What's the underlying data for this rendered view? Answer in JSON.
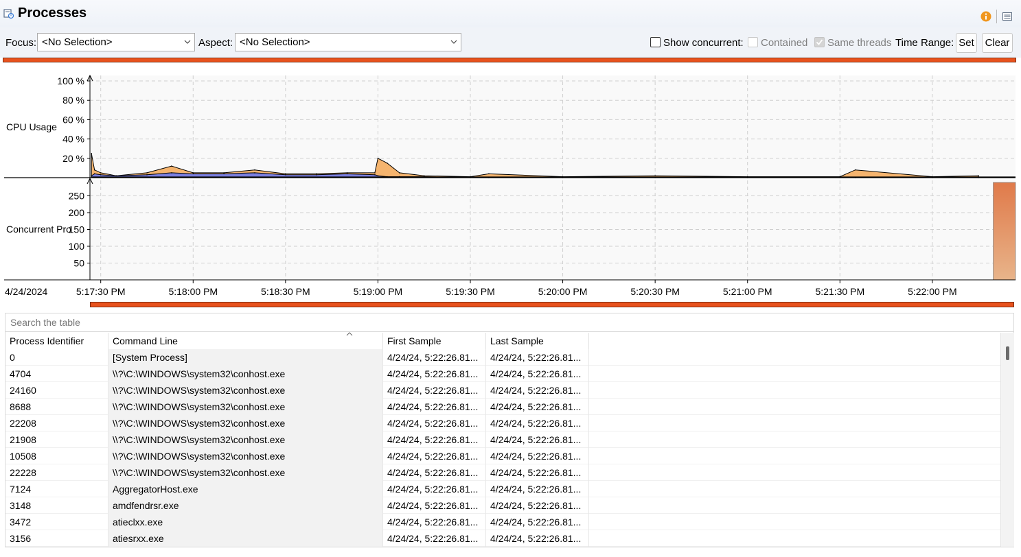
{
  "header": {
    "title": "Processes"
  },
  "toolbar": {
    "focus_label": "Focus:",
    "focus_value": "<No Selection>",
    "aspect_label": "Aspect:",
    "aspect_value": "<No Selection>",
    "show_concurrent_label": "Show concurrent:",
    "show_concurrent_checked": false,
    "contained_label": "Contained",
    "contained_checked": false,
    "same_threads_label": "Same threads",
    "same_threads_checked": true,
    "time_range_label": "Time Range:",
    "set_label": "Set",
    "clear_label": "Clear"
  },
  "chart": {
    "date_label": "4/24/2024",
    "cpu_axis_label": "CPU Usage",
    "concurrent_axis_label": "Concurrent Pro",
    "cpu_ticks": [
      "100 %",
      "80 %",
      "60 %",
      "40 %",
      "20 %"
    ],
    "concurrent_ticks": [
      "250",
      "200",
      "150",
      "100",
      "50"
    ],
    "time_ticks": [
      "5:17:30 PM",
      "5:18:00 PM",
      "5:18:30 PM",
      "5:19:00 PM",
      "5:19:30 PM",
      "5:20:00 PM",
      "5:20:30 PM",
      "5:21:00 PM",
      "5:21:30 PM",
      "5:22:00 PM"
    ]
  },
  "chart_data": [
    {
      "type": "area",
      "ylabel": "CPU Usage",
      "ylim": [
        0,
        100
      ],
      "grid": true,
      "x": [
        "5:17:27 PM",
        "5:17:28 PM",
        "5:17:30 PM",
        "5:17:35 PM",
        "5:17:45 PM",
        "5:17:53 PM",
        "5:18:00 PM",
        "5:18:10 PM",
        "5:18:20 PM",
        "5:18:30 PM",
        "5:18:40 PM",
        "5:18:50 PM",
        "5:18:59 PM",
        "5:19:00 PM",
        "5:19:03 PM",
        "5:19:07 PM",
        "5:19:15 PM",
        "5:19:30 PM",
        "5:19:36 PM",
        "5:20:00 PM",
        "5:20:30 PM",
        "5:21:00 PM",
        "5:21:30 PM",
        "5:21:35 PM",
        "5:22:00 PM",
        "5:22:15 PM"
      ],
      "series": [
        {
          "values": [
            25,
            8,
            5,
            2,
            5,
            12,
            5,
            5,
            8,
            4,
            4,
            5,
            5,
            20,
            15,
            5,
            2,
            1,
            4,
            1,
            2,
            1,
            1,
            8,
            1,
            2
          ]
        },
        {
          "values": [
            2,
            4,
            3,
            2,
            3,
            5,
            4,
            4,
            5,
            3,
            3,
            4,
            3,
            2,
            1,
            1,
            1,
            0,
            0,
            0,
            0,
            0,
            0,
            0,
            0,
            0
          ]
        }
      ]
    },
    {
      "type": "bar",
      "ylabel": "Concurrent Pro",
      "ylim": [
        0,
        300
      ],
      "categories": [
        "5:22:26 PM"
      ],
      "values": [
        290
      ]
    }
  ],
  "table": {
    "search_placeholder": "Search the table",
    "columns": [
      "Process Identifier",
      "Command Line",
      "First Sample",
      "Last Sample"
    ],
    "rows": [
      [
        "0",
        "[System Process]",
        "4/24/24, 5:22:26.81...",
        "4/24/24, 5:22:26.81..."
      ],
      [
        "4704",
        "\\\\?\\C:\\WINDOWS\\system32\\conhost.exe",
        "4/24/24, 5:22:26.81...",
        "4/24/24, 5:22:26.81..."
      ],
      [
        "24160",
        "\\\\?\\C:\\WINDOWS\\system32\\conhost.exe",
        "4/24/24, 5:22:26.81...",
        "4/24/24, 5:22:26.81..."
      ],
      [
        "8688",
        "\\\\?\\C:\\WINDOWS\\system32\\conhost.exe",
        "4/24/24, 5:22:26.81...",
        "4/24/24, 5:22:26.81..."
      ],
      [
        "22208",
        "\\\\?\\C:\\WINDOWS\\system32\\conhost.exe",
        "4/24/24, 5:22:26.81...",
        "4/24/24, 5:22:26.81..."
      ],
      [
        "21908",
        "\\\\?\\C:\\WINDOWS\\system32\\conhost.exe",
        "4/24/24, 5:22:26.81...",
        "4/24/24, 5:22:26.81..."
      ],
      [
        "10508",
        "\\\\?\\C:\\WINDOWS\\system32\\conhost.exe",
        "4/24/24, 5:22:26.81...",
        "4/24/24, 5:22:26.81..."
      ],
      [
        "22228",
        "\\\\?\\C:\\WINDOWS\\system32\\conhost.exe",
        "4/24/24, 5:22:26.81...",
        "4/24/24, 5:22:26.81..."
      ],
      [
        "7124",
        "AggregatorHost.exe",
        "4/24/24, 5:22:26.81...",
        "4/24/24, 5:22:26.81..."
      ],
      [
        "3148",
        "amdfendrsr.exe",
        "4/24/24, 5:22:26.81...",
        "4/24/24, 5:22:26.81..."
      ],
      [
        "3472",
        "atieclxx.exe",
        "4/24/24, 5:22:26.81...",
        "4/24/24, 5:22:26.81..."
      ],
      [
        "3156",
        "atiesrxx.exe",
        "4/24/24, 5:22:26.81...",
        "4/24/24, 5:22:26.81..."
      ]
    ]
  },
  "colors": {
    "accent_orange": "#e8521d",
    "cpu_area_orange": "#f5b46e",
    "cpu_area_blue": "#7b7fe0",
    "concurrent_bar_top": "#e07a4a",
    "concurrent_bar_bottom": "#e8b48a"
  }
}
